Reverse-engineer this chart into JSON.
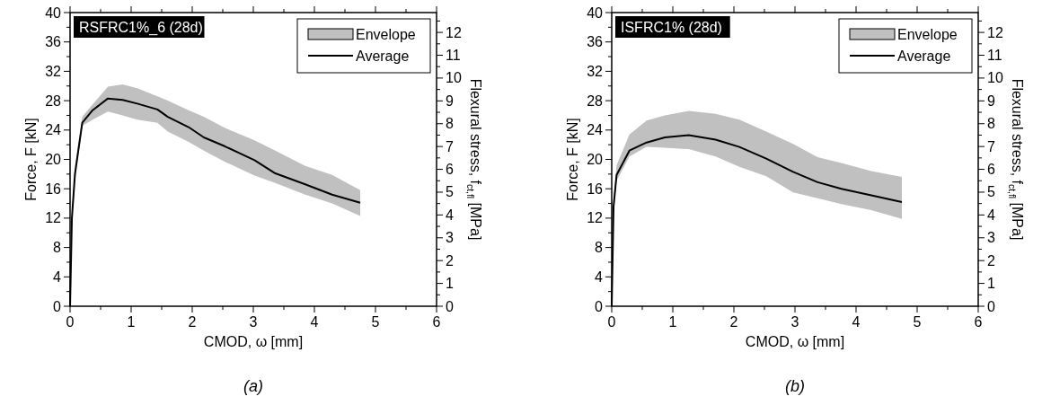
{
  "chart_data": [
    {
      "type": "line",
      "title": "RSFRC1%_6 (28d)",
      "xlabel": "CMOD, ω [mm]",
      "ylabel": "Force, F [kN]",
      "y2label": "Flexural stress, f$_{ct,fl}$ [MPa]",
      "annotations": [
        "(a)"
      ],
      "legend": "top right",
      "grid": false,
      "xlim": [
        0,
        6
      ],
      "ylim": [
        0,
        40
      ],
      "y2lim": [
        0,
        12.87
      ],
      "xticks": [
        0,
        {
          "value": 0.5,
          "label": null
        },
        1,
        {
          "value": 1.5,
          "label": null
        },
        2,
        {
          "value": 2.5,
          "label": null
        },
        3,
        {
          "value": 3.5,
          "label": null
        },
        4,
        {
          "value": 4.5,
          "label": null
        },
        5,
        {
          "value": 5.5,
          "label": null
        },
        6
      ],
      "yticks": [
        0,
        {
          "value": 2,
          "label": null
        },
        4,
        {
          "value": 6,
          "label": null
        },
        8,
        {
          "value": 10,
          "label": null
        },
        12,
        {
          "value": 14,
          "label": null
        },
        16,
        {
          "value": 18,
          "label": null
        },
        20,
        {
          "value": 22,
          "label": null
        },
        24,
        {
          "value": 26,
          "label": null
        },
        28,
        {
          "value": 30,
          "label": null
        },
        32,
        {
          "value": 34,
          "label": null
        },
        36,
        {
          "value": 38,
          "label": null
        },
        40
      ],
      "y2ticks": [
        0,
        {
          "value": 0.5,
          "label": null
        },
        1,
        {
          "value": 1.5,
          "label": null
        },
        2,
        {
          "value": 2.5,
          "label": null
        },
        3,
        {
          "value": 3.5,
          "label": null
        },
        4,
        {
          "value": 4.5,
          "label": null
        },
        5,
        {
          "value": 5.5,
          "label": null
        },
        6,
        {
          "value": 6.5,
          "label": null
        },
        7,
        {
          "value": 7.5,
          "label": null
        },
        8,
        {
          "value": 8.5,
          "label": null
        },
        9,
        {
          "value": 9.5,
          "label": null
        },
        10,
        {
          "value": 10.5,
          "label": null
        },
        11,
        {
          "value": 11.5,
          "label": null
        },
        12,
        {
          "value": 12.5,
          "label": null
        }
      ],
      "series": [
        {
          "name": "Envelope",
          "type": "area",
          "color": "#c0c0c0"
        },
        {
          "name": "Average",
          "color": "#000000",
          "line_style": "solid",
          "x": [
            0,
            0.03,
            0.08,
            0.2,
            0.37,
            0.62,
            0.86,
            1.1,
            1.43,
            1.6,
            1.94,
            2.19,
            2.53,
            3.02,
            3.36,
            3.85,
            4.29,
            4.75
          ],
          "values": [
            0,
            12,
            18,
            25,
            26.7,
            28.3,
            28.1,
            27.6,
            26.8,
            25.8,
            24.4,
            23,
            21.8,
            19.9,
            18.1,
            16.6,
            15.2,
            14.1
          ],
          "lower": [
            0,
            11.5,
            17,
            24.6,
            25.4,
            26.5,
            26,
            25.4,
            25,
            23.8,
            22.4,
            21.2,
            19.7,
            17.8,
            16.8,
            15.2,
            14,
            12.3
          ],
          "upper": [
            0,
            12.5,
            19,
            25.8,
            27.5,
            29.9,
            30.2,
            29.7,
            28.6,
            28,
            26.7,
            25.8,
            24.3,
            22.6,
            21.2,
            19.1,
            17.9,
            15.8
          ]
        }
      ]
    },
    {
      "type": "line",
      "title": "ISFRC1% (28d)",
      "xlabel": "CMOD, ω [mm]",
      "ylabel": "Force, F [kN]",
      "y2label": "Flexural stress, f$_{ct,fl}$ [MPa]",
      "annotations": [
        "(b)"
      ],
      "legend": "top right",
      "grid": false,
      "xlim": [
        0,
        6
      ],
      "ylim": [
        0,
        40
      ],
      "y2lim": [
        0,
        12.87
      ],
      "xticks": [
        0,
        {
          "value": 0.5,
          "label": null
        },
        1,
        {
          "value": 1.5,
          "label": null
        },
        2,
        {
          "value": 2.5,
          "label": null
        },
        3,
        {
          "value": 3.5,
          "label": null
        },
        4,
        {
          "value": 4.5,
          "label": null
        },
        5,
        {
          "value": 5.5,
          "label": null
        },
        6
      ],
      "yticks": [
        0,
        {
          "value": 2,
          "label": null
        },
        4,
        {
          "value": 6,
          "label": null
        },
        8,
        {
          "value": 10,
          "label": null
        },
        12,
        {
          "value": 14,
          "label": null
        },
        16,
        {
          "value": 18,
          "label": null
        },
        20,
        {
          "value": 22,
          "label": null
        },
        24,
        {
          "value": 26,
          "label": null
        },
        28,
        {
          "value": 30,
          "label": null
        },
        32,
        {
          "value": 34,
          "label": null
        },
        36,
        {
          "value": 38,
          "label": null
        },
        40
      ],
      "y2ticks": [
        0,
        {
          "value": 0.5,
          "label": null
        },
        1,
        {
          "value": 1.5,
          "label": null
        },
        2,
        {
          "value": 2.5,
          "label": null
        },
        3,
        {
          "value": 3.5,
          "label": null
        },
        4,
        {
          "value": 4.5,
          "label": null
        },
        5,
        {
          "value": 5.5,
          "label": null
        },
        6,
        {
          "value": 6.5,
          "label": null
        },
        7,
        {
          "value": 7.5,
          "label": null
        },
        8,
        {
          "value": 8.5,
          "label": null
        },
        9,
        {
          "value": 9.5,
          "label": null
        },
        10,
        {
          "value": 10.5,
          "label": null
        },
        11,
        {
          "value": 11.5,
          "label": null
        },
        12,
        {
          "value": 12.5,
          "label": null
        }
      ],
      "series": [
        {
          "name": "Envelope",
          "type": "area",
          "color": "#c0c0c0"
        },
        {
          "name": "Average",
          "color": "#000000",
          "line_style": "solid",
          "x": [
            0,
            0.03,
            0.08,
            0.29,
            0.57,
            0.87,
            1.26,
            1.7,
            2.09,
            2.53,
            2.97,
            3.37,
            3.76,
            4.25,
            4.75
          ],
          "values": [
            0,
            13.6,
            17.9,
            21.2,
            22.3,
            23,
            23.3,
            22.7,
            21.7,
            20.1,
            18.3,
            16.9,
            16,
            15.1,
            14.2
          ],
          "lower": [
            0,
            12.5,
            17.1,
            20.4,
            21.7,
            21.6,
            21.4,
            20.4,
            19,
            17.7,
            15.5,
            14.7,
            13.9,
            13.1,
            11.9
          ],
          "upper": [
            0,
            14.5,
            19.2,
            23.4,
            25.3,
            26,
            26.6,
            26.2,
            25.4,
            23.8,
            22.1,
            20.3,
            19.5,
            18.4,
            17.6
          ]
        }
      ]
    }
  ]
}
